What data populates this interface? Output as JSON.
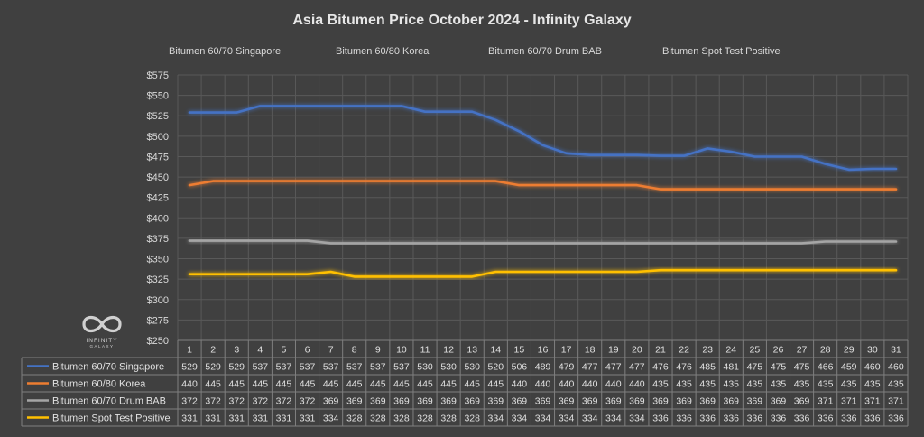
{
  "chart_data": {
    "type": "line",
    "title": "Asia Bitumen Price October 2024 - Infinity Galaxy",
    "categories": [
      "1",
      "2",
      "3",
      "4",
      "5",
      "6",
      "7",
      "8",
      "9",
      "10",
      "11",
      "12",
      "13",
      "14",
      "15",
      "16",
      "17",
      "18",
      "19",
      "20",
      "21",
      "22",
      "23",
      "24",
      "25",
      "26",
      "27",
      "28",
      "29",
      "30",
      "31"
    ],
    "ylim": [
      250,
      575
    ],
    "yticks": [
      "$250",
      "$275",
      "$300",
      "$325",
      "$350",
      "$375",
      "$400",
      "$425",
      "$450",
      "$475",
      "$500",
      "$525",
      "$550",
      "$575"
    ],
    "ytick_values": [
      250,
      275,
      300,
      325,
      350,
      375,
      400,
      425,
      450,
      475,
      500,
      525,
      550,
      575
    ],
    "grid": true,
    "legend_position": "top",
    "data_table": true,
    "series": [
      {
        "name": "Bitumen 60/70 Singapore",
        "color": "#4472c4",
        "values": [
          529,
          529,
          529,
          537,
          537,
          537,
          537,
          537,
          537,
          537,
          530,
          530,
          530,
          520,
          506,
          489,
          479,
          477,
          477,
          477,
          476,
          476,
          485,
          481,
          475,
          475,
          475,
          466,
          459,
          460,
          460
        ]
      },
      {
        "name": "Bitumen 60/80 Korea",
        "color": "#ed7d31",
        "values": [
          440,
          445,
          445,
          445,
          445,
          445,
          445,
          445,
          445,
          445,
          445,
          445,
          445,
          445,
          440,
          440,
          440,
          440,
          440,
          440,
          435,
          435,
          435,
          435,
          435,
          435,
          435,
          435,
          435,
          435,
          435
        ]
      },
      {
        "name": "Bitumen 60/70 Drum BAB",
        "color": "#a5a5a5",
        "values": [
          372,
          372,
          372,
          372,
          372,
          372,
          369,
          369,
          369,
          369,
          369,
          369,
          369,
          369,
          369,
          369,
          369,
          369,
          369,
          369,
          369,
          369,
          369,
          369,
          369,
          369,
          369,
          371,
          371,
          371,
          371
        ]
      },
      {
        "name": "Bitumen Spot Test Positive",
        "color": "#ffc000",
        "values": [
          331,
          331,
          331,
          331,
          331,
          331,
          334,
          328,
          328,
          328,
          328,
          328,
          328,
          334,
          334,
          334,
          334,
          334,
          334,
          334,
          336,
          336,
          336,
          336,
          336,
          336,
          336,
          336,
          336,
          336,
          336
        ]
      }
    ]
  },
  "logo": {
    "name": "infinity-galaxy-logo",
    "line1": "INFINITY",
    "line2": "GALAXY"
  }
}
